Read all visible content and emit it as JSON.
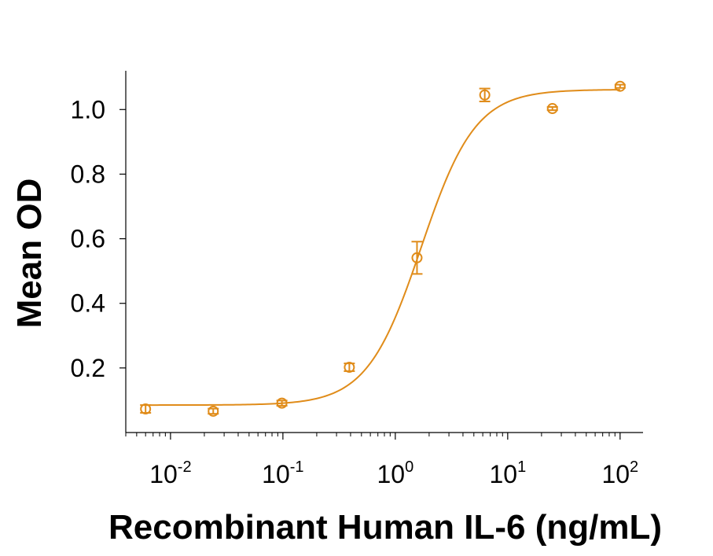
{
  "chart_data": {
    "type": "scatter",
    "xlabel": "Recombinant Human IL-6 (ng/mL)",
    "ylabel": "Mean OD",
    "xscale": "log",
    "xlim": [
      0.004,
      160
    ],
    "ylim": [
      0.0,
      1.12
    ],
    "grid": false,
    "yticks": [
      {
        "value": 0.2,
        "label": "0.2"
      },
      {
        "value": 0.4,
        "label": "0.4"
      },
      {
        "value": 0.6,
        "label": "0.6"
      },
      {
        "value": 0.8,
        "label": "0.8"
      },
      {
        "value": 1.0,
        "label": "1.0"
      }
    ],
    "xticks": [
      {
        "value": 0.01,
        "base": "10",
        "exp": "-2"
      },
      {
        "value": 0.1,
        "base": "10",
        "exp": "-1"
      },
      {
        "value": 1,
        "base": "10",
        "exp": "0"
      },
      {
        "value": 10,
        "base": "10",
        "exp": "1"
      },
      {
        "value": 100,
        "base": "10",
        "exp": "2"
      }
    ],
    "series": [
      {
        "color": "#e08c1a",
        "marker": "open-circle",
        "x": [
          0.006,
          0.024,
          0.098,
          0.39,
          1.56,
          6.25,
          25,
          100
        ],
        "y": [
          0.073,
          0.066,
          0.091,
          0.202,
          0.541,
          1.045,
          1.003,
          1.072
        ],
        "yerr": [
          0.012,
          0.008,
          0.008,
          0.012,
          0.05,
          0.02,
          0.005,
          0.005
        ],
        "fit": {
          "model": "4PL",
          "bottom": 0.085,
          "top": 1.062,
          "ec50": 1.7,
          "hill": 1.8
        }
      }
    ]
  }
}
